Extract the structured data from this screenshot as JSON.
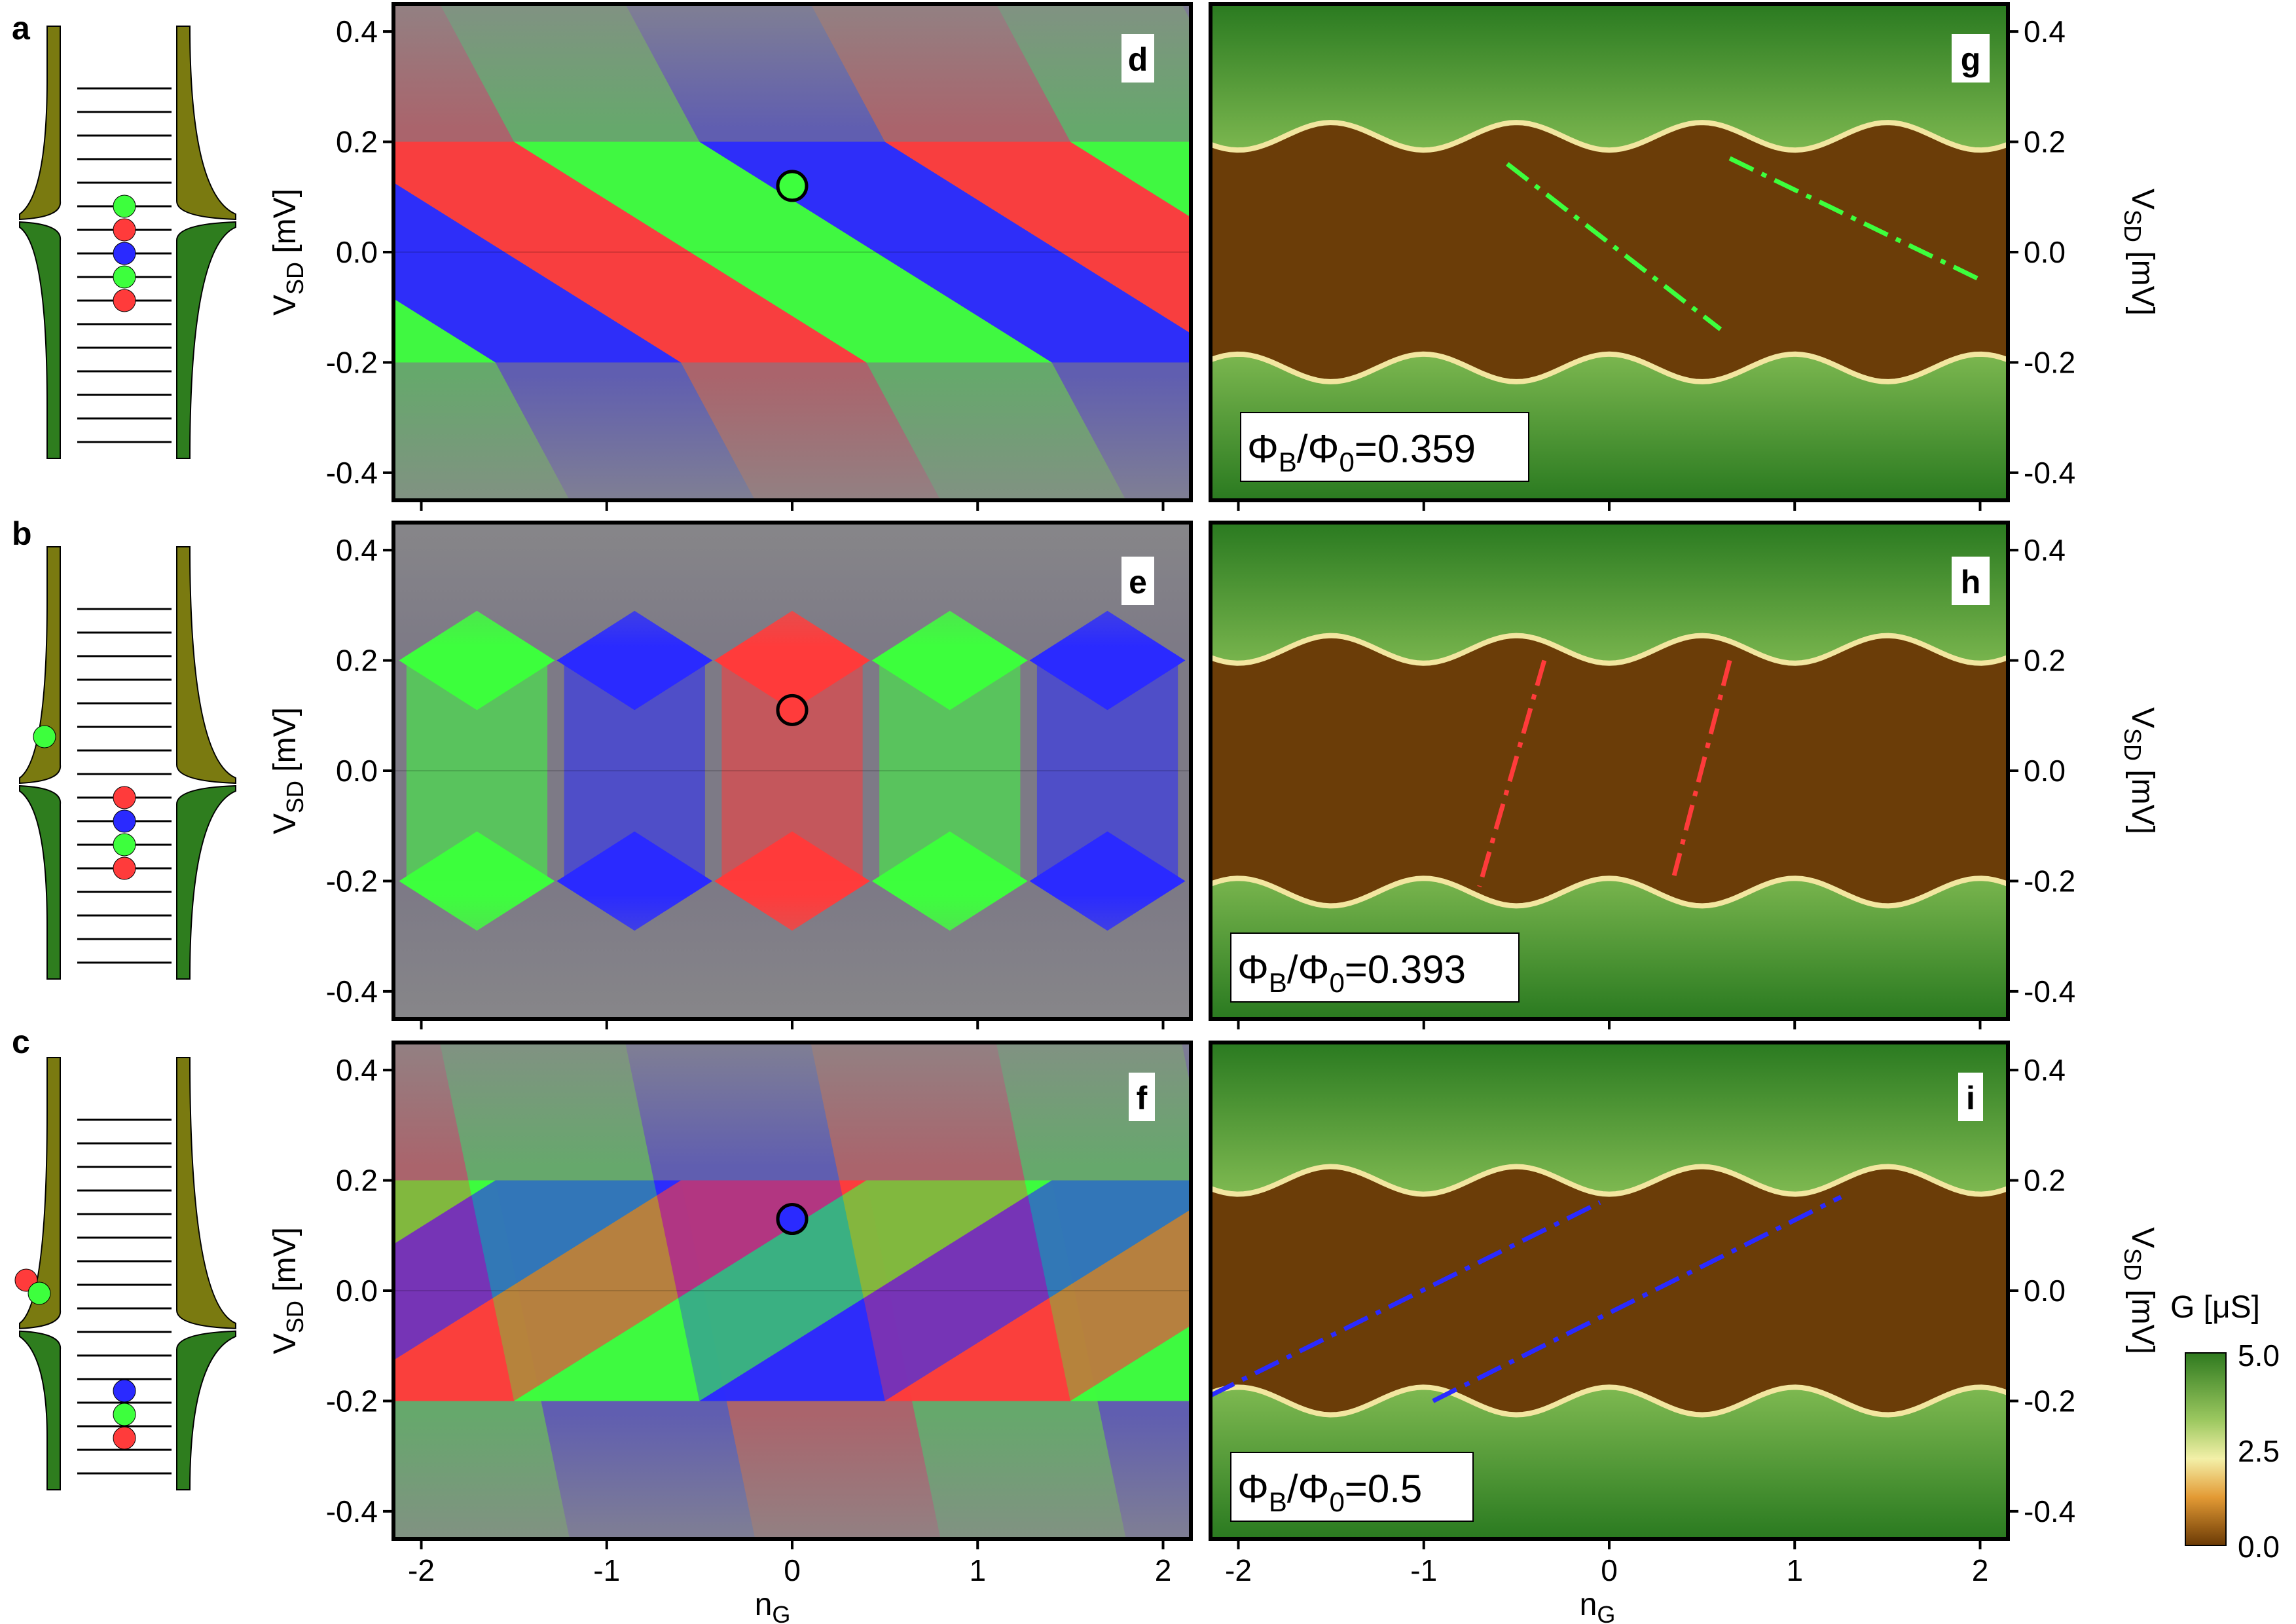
{
  "figure": {
    "panel_labels": [
      "a",
      "b",
      "c",
      "d",
      "e",
      "f",
      "g",
      "h",
      "i"
    ],
    "left_axis_label": "V",
    "left_axis_label_sub": "SD",
    "left_axis_unit": " [mV]",
    "right_axis_label": "V",
    "right_axis_label_sub": "SD",
    "right_axis_unit": " [mV]",
    "x_axis_label": "n",
    "x_axis_label_sub": "G",
    "annotations": [
      {
        "prefix": "Φ",
        "sub1": "B",
        "mid": "/Φ",
        "sub2": "0",
        "value": "=0.359"
      },
      {
        "prefix": "Φ",
        "sub1": "B",
        "mid": "/Φ",
        "sub2": "0",
        "value": "=0.393"
      },
      {
        "prefix": "Φ",
        "sub1": "B",
        "mid": "/Φ",
        "sub2": "0",
        "value": "=0.5"
      }
    ],
    "colorbar": {
      "label": "G [μS]",
      "ticks": [
        "5.0",
        "2.5",
        "0.0"
      ],
      "colors": [
        "#2f7a1f",
        "#c8e090",
        "#f5f0a0",
        "#e8a03a",
        "#6b3a05"
      ]
    },
    "colors": {
      "red": "#ff3b3b",
      "green": "#3dff3d",
      "blue": "#2a2aff",
      "gap_brown": "#6b3d08",
      "lead_olive": "#7a7a10",
      "lead_green": "#2e7d1e"
    }
  },
  "chart_data": [
    {
      "type": "heatmap",
      "panel": "d",
      "xlabel": "nG",
      "ylabel": "VSD [mV]",
      "xlim": [
        -2.15,
        2.15
      ],
      "ylim": [
        -0.45,
        0.45
      ],
      "xticks": [
        "-2",
        "-1",
        "0",
        "1",
        "2"
      ],
      "yticks": [
        "0.4",
        "0.2",
        "0.0",
        "-0.2",
        "-0.4"
      ],
      "pattern": "tilted-down",
      "marker": {
        "x": 0.0,
        "y": 0.12,
        "color": "green"
      }
    },
    {
      "type": "heatmap",
      "panel": "e",
      "xlabel": "nG",
      "ylabel": "VSD [mV]",
      "xlim": [
        -2.15,
        2.15
      ],
      "ylim": [
        -0.45,
        0.45
      ],
      "xticks": [
        "-2",
        "-1",
        "0",
        "1",
        "2"
      ],
      "yticks": [
        "0.4",
        "0.2",
        "0.0",
        "-0.2",
        "-0.4"
      ],
      "pattern": "diamonds",
      "marker": {
        "x": 0.0,
        "y": 0.11,
        "color": "red"
      }
    },
    {
      "type": "heatmap",
      "panel": "f",
      "xlabel": "nG",
      "ylabel": "VSD [mV]",
      "xlim": [
        -2.15,
        2.15
      ],
      "ylim": [
        -0.45,
        0.45
      ],
      "xticks": [
        "-2",
        "-1",
        "0",
        "1",
        "2"
      ],
      "yticks": [
        "0.4",
        "0.2",
        "0.0",
        "-0.2",
        "-0.4"
      ],
      "pattern": "tilted-up",
      "marker": {
        "x": 0.0,
        "y": 0.13,
        "color": "blue"
      }
    },
    {
      "type": "heatmap",
      "panel": "g",
      "xlabel": "nG",
      "ylabel": "VSD [mV]",
      "xlim": [
        -2.15,
        2.15
      ],
      "ylim": [
        -0.45,
        0.45
      ],
      "xticks": [
        "-2",
        "-1",
        "0",
        "1",
        "2"
      ],
      "yticks": [
        "0.4",
        "0.2",
        "0.0",
        "-0.2",
        "-0.4"
      ],
      "gap_edge_mV": 0.21,
      "dashed_lines": [
        {
          "x": [
            -0.55,
            0.6
          ],
          "y": [
            0.16,
            -0.14
          ],
          "color": "green"
        },
        {
          "x": [
            0.65,
            2.0
          ],
          "y": [
            0.17,
            -0.05
          ],
          "color": "green"
        }
      ]
    },
    {
      "type": "heatmap",
      "panel": "h",
      "xlabel": "nG",
      "ylabel": "VSD [mV]",
      "xlim": [
        -2.15,
        2.15
      ],
      "ylim": [
        -0.45,
        0.45
      ],
      "xticks": [
        "-2",
        "-1",
        "0",
        "1",
        "2"
      ],
      "yticks": [
        "0.4",
        "0.2",
        "0.0",
        "-0.2",
        "-0.4"
      ],
      "gap_edge_mV": 0.22,
      "dashed_lines": [
        {
          "x": [
            -0.35,
            -0.7
          ],
          "y": [
            0.2,
            -0.21
          ],
          "color": "red"
        },
        {
          "x": [
            0.65,
            0.35
          ],
          "y": [
            0.2,
            -0.19
          ],
          "color": "red"
        }
      ]
    },
    {
      "type": "heatmap",
      "panel": "i",
      "xlabel": "nG",
      "ylabel": "VSD [mV]",
      "xlim": [
        -2.15,
        2.15
      ],
      "ylim": [
        -0.45,
        0.45
      ],
      "xticks": [
        "-2",
        "-1",
        "0",
        "1",
        "2"
      ],
      "yticks": [
        "0.4",
        "0.2",
        "0.0",
        "-0.2",
        "-0.4"
      ],
      "gap_edge_mV": 0.2,
      "dashed_lines": [
        {
          "x": [
            -2.15,
            -0.05
          ],
          "y": [
            -0.19,
            0.16
          ],
          "color": "blue"
        },
        {
          "x": [
            -0.95,
            1.25
          ],
          "y": [
            -0.2,
            0.17
          ],
          "color": "blue"
        }
      ]
    }
  ]
}
